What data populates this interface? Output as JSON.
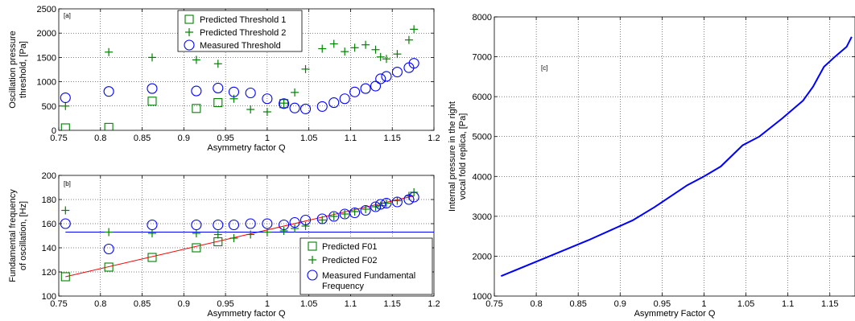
{
  "chart_data": [
    {
      "id": "a",
      "type": "scatter",
      "panel_tag": "[a]",
      "xlabel": "Asymmetry factor Q",
      "ylabel": [
        "Oscillation pressure",
        "threshold, [Pa]"
      ],
      "xlim": [
        0.75,
        1.2
      ],
      "ylim": [
        0,
        2500
      ],
      "xticks": [
        0.75,
        0.8,
        0.85,
        0.9,
        0.95,
        1,
        1.05,
        1.1,
        1.15,
        1.2
      ],
      "xtick_labels": [
        "0.75",
        "0.8",
        "0.85",
        "0.9",
        "0.95",
        "1",
        "1.05",
        "1.1",
        "1.15",
        "1.2"
      ],
      "yticks": [
        0,
        500,
        1000,
        1500,
        2000,
        2500
      ],
      "ytick_labels": [
        "0",
        "500",
        "1000",
        "1500",
        "2000",
        "2500"
      ],
      "grid": true,
      "legend_position": "top-center",
      "series": [
        {
          "name": "Predicted Threshold 1",
          "marker": "square",
          "color": "#008000",
          "x": [
            0.758,
            0.81,
            0.862,
            0.915,
            0.941,
            1.02
          ],
          "y": [
            50,
            60,
            600,
            450,
            570,
            550
          ]
        },
        {
          "name": "Predicted Threshold 2",
          "marker": "plus",
          "color": "#008000",
          "x": [
            0.758,
            0.81,
            0.862,
            0.915,
            0.941,
            0.96,
            0.98,
            1.0,
            1.02,
            1.033,
            1.046,
            1.066,
            1.08,
            1.093,
            1.105,
            1.118,
            1.13,
            1.136,
            1.143,
            1.156,
            1.17,
            1.176
          ],
          "y": [
            500,
            1610,
            1500,
            1450,
            1370,
            650,
            430,
            380,
            560,
            780,
            1260,
            1680,
            1780,
            1620,
            1700,
            1760,
            1660,
            1510,
            1470,
            1570,
            1860,
            2080
          ]
        },
        {
          "name": "Measured Threshold",
          "marker": "circle",
          "color": "#0000ff",
          "x": [
            0.758,
            0.81,
            0.862,
            0.915,
            0.941,
            0.96,
            0.98,
            1.0,
            1.02,
            1.033,
            1.046,
            1.066,
            1.08,
            1.093,
            1.105,
            1.118,
            1.13,
            1.136,
            1.143,
            1.156,
            1.17,
            1.176
          ],
          "y": [
            670,
            800,
            860,
            810,
            870,
            790,
            770,
            650,
            550,
            460,
            440,
            490,
            570,
            650,
            790,
            860,
            910,
            1060,
            1110,
            1200,
            1290,
            1380
          ]
        }
      ]
    },
    {
      "id": "b",
      "type": "scatter",
      "panel_tag": "[b]",
      "xlabel": "Asymmetry factor Q",
      "ylabel": [
        "Fundamental frequency",
        "of oscillation, [Hz]"
      ],
      "xlim": [
        0.75,
        1.2
      ],
      "ylim": [
        100,
        200
      ],
      "xticks": [
        0.75,
        0.8,
        0.85,
        0.9,
        0.95,
        1,
        1.05,
        1.1,
        1.15,
        1.2
      ],
      "xtick_labels": [
        "0.75",
        "0.8",
        "0.85",
        "0.9",
        "0.95",
        "1",
        "1.05",
        "1.1",
        "1.15",
        "1.2"
      ],
      "yticks": [
        100,
        120,
        140,
        160,
        180,
        200
      ],
      "ytick_labels": [
        "100",
        "120",
        "140",
        "160",
        "180",
        "200"
      ],
      "grid": true,
      "legend_position": "bottom-right",
      "series": [
        {
          "name": "Predicted F01",
          "marker": "square",
          "color": "#008000",
          "x": [
            0.758,
            0.81,
            0.862,
            0.915,
            0.941
          ],
          "y": [
            116,
            124,
            132,
            140,
            145
          ]
        },
        {
          "name": "Predicted F02",
          "marker": "plus",
          "color": "#008000",
          "x": [
            0.758,
            0.81,
            0.862,
            0.915,
            0.941,
            0.96,
            0.98,
            1.0,
            1.02,
            1.033,
            1.046,
            1.066,
            1.08,
            1.093,
            1.105,
            1.118,
            1.13,
            1.136,
            1.143,
            1.156,
            1.17,
            1.176
          ],
          "y": [
            171,
            153,
            152,
            152,
            151,
            148,
            151,
            153,
            154,
            156,
            158,
            163,
            166,
            168,
            170,
            172,
            174,
            175,
            177,
            179,
            183,
            186
          ]
        },
        {
          "name": "Measured Fundamental Frequency",
          "marker": "circle",
          "color": "#0000ff",
          "x": [
            0.758,
            0.81,
            0.862,
            0.915,
            0.941,
            0.96,
            0.98,
            1.0,
            1.02,
            1.033,
            1.046,
            1.066,
            1.08,
            1.093,
            1.105,
            1.118,
            1.13,
            1.136,
            1.143,
            1.156,
            1.17,
            1.176
          ],
          "y": [
            160,
            139,
            159,
            159,
            159,
            159,
            160,
            160,
            159,
            161,
            163,
            164,
            166,
            168,
            169,
            171,
            174,
            176,
            177,
            178,
            180,
            182
          ]
        }
      ],
      "lines": [
        {
          "color": "#ff0000",
          "x": [
            0.758,
            1.176
          ],
          "y": [
            116,
            183
          ]
        },
        {
          "color": "#0000ff",
          "x": [
            0.758,
            1.2
          ],
          "y": [
            153,
            153
          ]
        }
      ]
    },
    {
      "id": "c",
      "type": "line",
      "panel_tag": "[c]",
      "xlabel": "Asymmetry Factor Q",
      "ylabel": [
        "Internal pressure in the right",
        "vocal fold replica, [Pa]"
      ],
      "xlim": [
        0.75,
        1.18
      ],
      "ylim": [
        1000,
        8000
      ],
      "xticks": [
        0.75,
        0.8,
        0.85,
        0.9,
        0.95,
        1,
        1.05,
        1.1,
        1.15
      ],
      "xtick_labels": [
        "0.75",
        "0.8",
        "0.85",
        "0.9",
        "0.95",
        "1",
        "1.05",
        "1.1",
        "1.15"
      ],
      "yticks": [
        1000,
        2000,
        3000,
        4000,
        5000,
        6000,
        7000,
        8000
      ],
      "ytick_labels": [
        "1000",
        "2000",
        "3000",
        "4000",
        "5000",
        "6000",
        "7000",
        "8000"
      ],
      "grid": true,
      "series": [
        {
          "color": "#0000ff",
          "x": [
            0.758,
            0.81,
            0.862,
            0.915,
            0.941,
            0.98,
            1.0,
            1.02,
            1.046,
            1.066,
            1.093,
            1.118,
            1.13,
            1.143,
            1.156,
            1.17,
            1.176
          ],
          "y": [
            1500,
            1950,
            2400,
            2900,
            3230,
            3780,
            4000,
            4250,
            4780,
            5000,
            5450,
            5900,
            6250,
            6750,
            7000,
            7250,
            7500
          ]
        }
      ]
    }
  ]
}
